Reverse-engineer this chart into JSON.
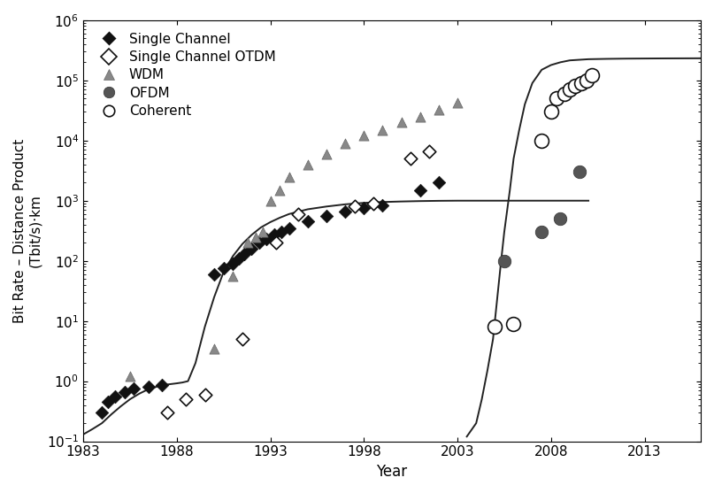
{
  "xlabel": "Year",
  "ylabel": "Bit Rate – Distance Product\n(Tbit/s)·km",
  "xlim": [
    1983,
    2016
  ],
  "ylim_log": [
    0.1,
    1000000
  ],
  "xticks": [
    1983,
    1988,
    1993,
    1998,
    2003,
    2008,
    2013
  ],
  "background_color": "#ffffff",
  "single_channel": [
    [
      1984,
      0.3
    ],
    [
      1984.3,
      0.45
    ],
    [
      1984.7,
      0.55
    ],
    [
      1985.2,
      0.65
    ],
    [
      1985.7,
      0.75
    ],
    [
      1986.5,
      0.8
    ],
    [
      1987.2,
      0.85
    ],
    [
      1990.0,
      60
    ],
    [
      1990.5,
      75
    ],
    [
      1991.0,
      90
    ],
    [
      1991.3,
      110
    ],
    [
      1991.6,
      130
    ],
    [
      1992.0,
      160
    ],
    [
      1992.4,
      200
    ],
    [
      1992.8,
      230
    ],
    [
      1993.2,
      270
    ],
    [
      1993.6,
      300
    ],
    [
      1994.0,
      350
    ],
    [
      1995.0,
      450
    ],
    [
      1996.0,
      550
    ],
    [
      1997.0,
      650
    ],
    [
      1998.0,
      750
    ],
    [
      1999.0,
      850
    ],
    [
      2001.0,
      1500
    ],
    [
      2002.0,
      2000
    ]
  ],
  "single_channel_otdm": [
    [
      1987.5,
      0.3
    ],
    [
      1988.5,
      0.5
    ],
    [
      1989.5,
      0.6
    ],
    [
      1991.5,
      5
    ],
    [
      1993.3,
      200
    ],
    [
      1994.5,
      600
    ],
    [
      1997.5,
      800
    ],
    [
      1998.5,
      900
    ],
    [
      2000.5,
      5000
    ],
    [
      2001.5,
      6500
    ]
  ],
  "wdm": [
    [
      1985.5,
      1.2
    ],
    [
      1990.0,
      3.5
    ],
    [
      1991.0,
      55
    ],
    [
      1991.8,
      200
    ],
    [
      1992.2,
      250
    ],
    [
      1992.6,
      300
    ],
    [
      1993.0,
      1000
    ],
    [
      1993.5,
      1500
    ],
    [
      1994.0,
      2500
    ],
    [
      1995.0,
      4000
    ],
    [
      1996.0,
      6000
    ],
    [
      1997.0,
      9000
    ],
    [
      1998.0,
      12000
    ],
    [
      1999.0,
      15000
    ],
    [
      2000.0,
      20000
    ],
    [
      2001.0,
      25000
    ],
    [
      2002.0,
      32000
    ],
    [
      2003.0,
      42000
    ]
  ],
  "ofdm": [
    [
      2005.5,
      100
    ],
    [
      2007.5,
      300
    ],
    [
      2008.5,
      500
    ],
    [
      2009.5,
      3000
    ]
  ],
  "coherent": [
    [
      2005.0,
      8
    ],
    [
      2006.0,
      9
    ],
    [
      2007.5,
      10000
    ],
    [
      2008.0,
      30000
    ],
    [
      2008.3,
      50000
    ],
    [
      2008.7,
      60000
    ],
    [
      2009.0,
      70000
    ],
    [
      2009.3,
      80000
    ],
    [
      2009.6,
      90000
    ],
    [
      2009.9,
      100000
    ],
    [
      2010.2,
      120000
    ]
  ],
  "curve1_x": [
    1983.0,
    1983.5,
    1984.0,
    1984.5,
    1985.0,
    1985.5,
    1986.0,
    1986.5,
    1987.0,
    1987.5,
    1988.0,
    1988.3,
    1988.6,
    1989.0,
    1989.5,
    1990.0,
    1990.5,
    1991.0,
    1991.5,
    1992.0,
    1992.5,
    1993.0,
    1993.5,
    1994.0,
    1995.0,
    1996.0,
    1997.0,
    1998.0,
    1999.0,
    2000.0,
    2001.0,
    2002.0,
    2003.0,
    2004.0,
    2005.0,
    2006.0,
    2007.0,
    2008.0,
    2009.0,
    2010.0
  ],
  "curve1_y": [
    0.13,
    0.16,
    0.2,
    0.28,
    0.38,
    0.5,
    0.62,
    0.74,
    0.82,
    0.88,
    0.92,
    0.95,
    1.0,
    2.0,
    8.0,
    25,
    65,
    120,
    190,
    270,
    360,
    440,
    520,
    600,
    720,
    800,
    870,
    920,
    950,
    970,
    985,
    995,
    1000,
    1000,
    1000,
    1000,
    1000,
    1000,
    1000,
    1000
  ],
  "curve2_x": [
    2003.5,
    2004.0,
    2004.3,
    2004.6,
    2004.9,
    2005.1,
    2005.3,
    2005.5,
    2005.8,
    2006.0,
    2006.3,
    2006.6,
    2007.0,
    2007.5,
    2008.0,
    2008.5,
    2009.0,
    2009.5,
    2010.0,
    2011.0,
    2012.0,
    2013.0,
    2014.0,
    2015.0,
    2016.0
  ],
  "curve2_y": [
    0.12,
    0.2,
    0.5,
    1.5,
    5,
    20,
    80,
    300,
    1500,
    5000,
    15000,
    40000,
    90000,
    150000,
    180000,
    200000,
    215000,
    220000,
    225000,
    228000,
    230000,
    231000,
    232000,
    232500,
    233000
  ],
  "sc_color": "#111111",
  "otdm_color": "#111111",
  "wdm_color": "#888888",
  "ofdm_color": "#555555",
  "coherent_color": "#111111",
  "curve_color": "#222222"
}
